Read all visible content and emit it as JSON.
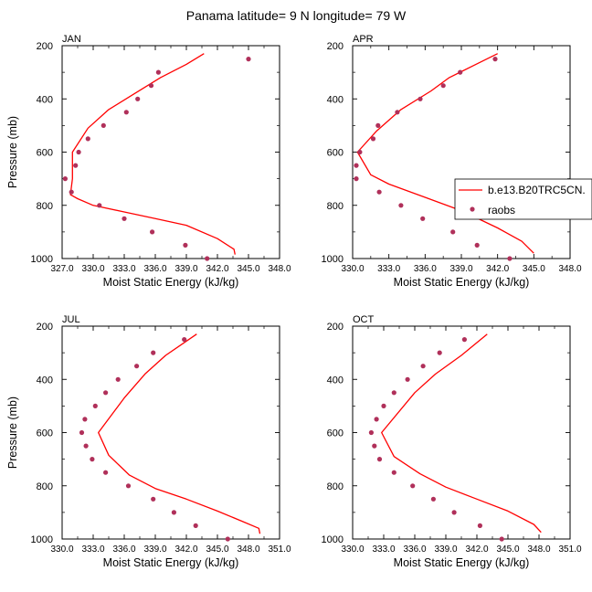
{
  "title": "Panama  latitude= 9 N longitude= 79 W",
  "colors": {
    "model": "#ff0000",
    "obs": "#b0305a",
    "axis": "#000000"
  },
  "legend": {
    "model_label": "b.e13.B20TRC5CN.",
    "obs_label": "raobs"
  },
  "chart_data": [
    {
      "type": "line",
      "panel": "JAN",
      "xlabel": "Moist Static Energy (kJ/kg)",
      "ylabel": "Pressure (mb)",
      "xlim": [
        327.0,
        348.0
      ],
      "xticks": [
        327.0,
        330.0,
        333.0,
        336.0,
        339.0,
        342.0,
        345.0,
        348.0
      ],
      "xtick_labels": [
        "327.0",
        "330.0",
        "333.0",
        "336.0",
        "339.0",
        "342.0",
        "345.0",
        "348.0"
      ],
      "ylim": [
        1000,
        200
      ],
      "yticks": [
        200,
        400,
        600,
        800,
        1000
      ],
      "ytick_labels": [
        "200",
        "400",
        "600",
        "800",
        "1000"
      ],
      "series": [
        {
          "name": "b.e13.B20TRC5CN.",
          "kind": "line",
          "x": [
            340.7,
            339.0,
            336.5,
            334.0,
            331.5,
            329.5,
            328.0,
            328.0,
            328.0,
            327.8,
            328.5,
            330.0,
            333.0,
            336.0,
            339.0,
            342.0,
            343.6,
            343.7
          ],
          "y": [
            230,
            270,
            320,
            380,
            440,
            510,
            600,
            650,
            700,
            760,
            775,
            800,
            825,
            850,
            875,
            925,
            965,
            985
          ]
        },
        {
          "name": "raobs",
          "kind": "scatter",
          "x": [
            345.0,
            336.3,
            335.6,
            334.3,
            333.2,
            331.0,
            329.5,
            328.6,
            328.3,
            327.3,
            327.9,
            330.6,
            333.0,
            335.7,
            338.9,
            341.0
          ],
          "y": [
            250,
            300,
            350,
            400,
            450,
            500,
            550,
            600,
            650,
            700,
            750,
            800,
            850,
            900,
            950,
            1000
          ]
        }
      ]
    },
    {
      "type": "line",
      "panel": "APR",
      "xlabel": "Moist Static Energy (kJ/kg)",
      "ylabel": "",
      "xlim": [
        330.0,
        348.0
      ],
      "xticks": [
        330.0,
        333.0,
        336.0,
        339.0,
        342.0,
        345.0,
        348.0
      ],
      "xtick_labels": [
        "330.0",
        "333.0",
        "336.0",
        "339.0",
        "342.0",
        "345.0",
        "348.0"
      ],
      "ylim": [
        1000,
        200
      ],
      "yticks": [
        200,
        400,
        600,
        800,
        1000
      ],
      "ytick_labels": [
        "200",
        "400",
        "600",
        "800",
        "1000"
      ],
      "series": [
        {
          "name": "b.e13.B20TRC5CN.",
          "kind": "line",
          "x": [
            342.0,
            340.0,
            338.0,
            336.5,
            334.0,
            332.0,
            330.4,
            331.5,
            333.0,
            336.0,
            339.0,
            342.0,
            344.0,
            345.0
          ],
          "y": [
            230,
            275,
            320,
            370,
            440,
            520,
            600,
            685,
            720,
            770,
            820,
            885,
            935,
            980
          ]
        },
        {
          "name": "raobs",
          "kind": "scatter",
          "x": [
            341.8,
            338.9,
            337.5,
            335.6,
            333.7,
            332.1,
            331.7,
            330.6,
            330.3,
            330.3,
            332.2,
            334.0,
            335.8,
            338.3,
            340.3,
            343.0
          ],
          "y": [
            250,
            300,
            350,
            400,
            450,
            500,
            550,
            600,
            650,
            700,
            750,
            800,
            850,
            900,
            950,
            1000
          ]
        }
      ]
    },
    {
      "type": "line",
      "panel": "JUL",
      "xlabel": "Moist Static Energy (kJ/kg)",
      "ylabel": "Pressure (mb)",
      "xlim": [
        330.0,
        351.0
      ],
      "xticks": [
        330.0,
        333.0,
        336.0,
        339.0,
        342.0,
        345.0,
        348.0,
        351.0
      ],
      "xtick_labels": [
        "330.0",
        "333.0",
        "336.0",
        "339.0",
        "342.0",
        "345.0",
        "348.0",
        "351.0"
      ],
      "ylim": [
        1000,
        200
      ],
      "yticks": [
        200,
        400,
        600,
        800,
        1000
      ],
      "ytick_labels": [
        "200",
        "400",
        "600",
        "800",
        "1000"
      ],
      "series": [
        {
          "name": "b.e13.B20TRC5CN.",
          "kind": "line",
          "x": [
            343.0,
            340.0,
            338.0,
            336.0,
            333.5,
            334.5,
            336.5,
            339.0,
            342.0,
            345.0,
            347.5,
            349.0,
            349.1
          ],
          "y": [
            230,
            310,
            380,
            470,
            600,
            685,
            760,
            810,
            850,
            895,
            935,
            960,
            980
          ]
        },
        {
          "name": "raobs",
          "kind": "scatter",
          "x": [
            341.8,
            338.8,
            337.2,
            335.4,
            334.2,
            333.2,
            332.2,
            331.9,
            332.3,
            332.9,
            334.2,
            336.4,
            338.8,
            340.8,
            342.9,
            346.0
          ],
          "y": [
            250,
            300,
            350,
            400,
            450,
            500,
            550,
            600,
            650,
            700,
            750,
            800,
            850,
            900,
            950,
            1000
          ]
        }
      ]
    },
    {
      "type": "line",
      "panel": "OCT",
      "xlabel": "Moist Static Energy (kJ/kg)",
      "ylabel": "",
      "xlim": [
        330.0,
        351.0
      ],
      "xticks": [
        330.0,
        333.0,
        336.0,
        339.0,
        342.0,
        345.0,
        348.0,
        351.0
      ],
      "xtick_labels": [
        "330.0",
        "333.0",
        "336.0",
        "339.0",
        "342.0",
        "345.0",
        "348.0",
        "351.0"
      ],
      "ylim": [
        1000,
        200
      ],
      "yticks": [
        200,
        400,
        600,
        800,
        1000
      ],
      "ytick_labels": [
        "200",
        "400",
        "600",
        "800",
        "1000"
      ],
      "series": [
        {
          "name": "b.e13.B20TRC5CN.",
          "kind": "line",
          "x": [
            343.0,
            340.5,
            338.0,
            336.0,
            332.8,
            334.0,
            336.5,
            339.0,
            342.0,
            345.0,
            347.5,
            348.2
          ],
          "y": [
            230,
            310,
            380,
            450,
            600,
            690,
            755,
            805,
            850,
            895,
            945,
            975
          ]
        },
        {
          "name": "raobs",
          "kind": "scatter",
          "x": [
            340.8,
            338.4,
            336.8,
            335.3,
            334.0,
            333.0,
            332.3,
            331.8,
            332.1,
            332.6,
            334.0,
            335.8,
            337.8,
            339.8,
            342.3,
            344.4
          ],
          "y": [
            250,
            300,
            350,
            400,
            450,
            500,
            550,
            600,
            650,
            700,
            750,
            800,
            850,
            900,
            950,
            1000
          ]
        }
      ]
    }
  ]
}
